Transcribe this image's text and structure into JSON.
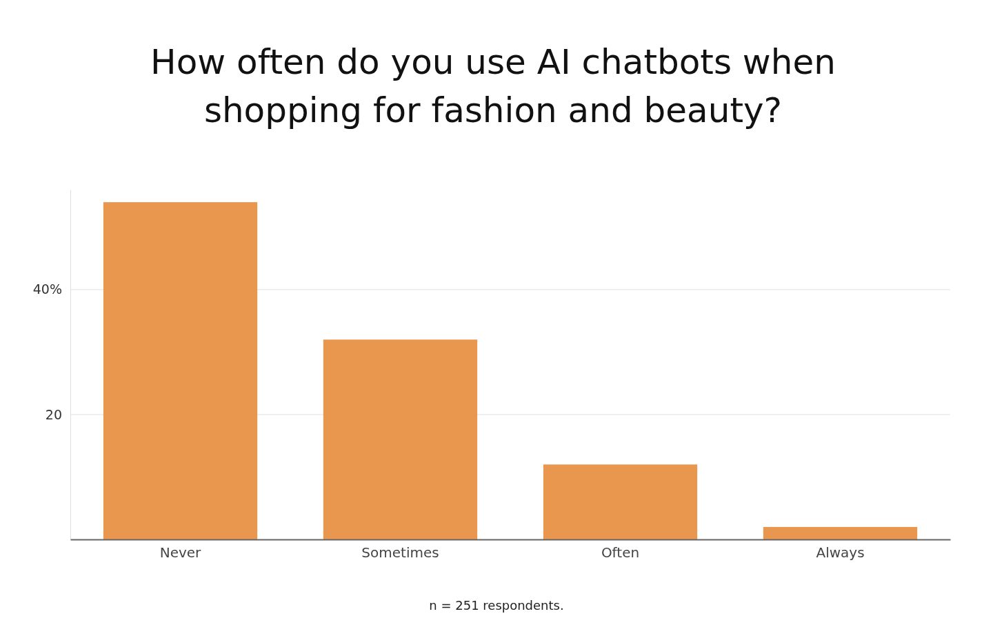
{
  "chart_data": {
    "type": "bar",
    "title": "How often do you use AI chatbots when shopping for fashion and beauty?",
    "categories": [
      "Never",
      "Sometimes",
      "Often",
      "Always"
    ],
    "values": [
      54,
      32,
      12,
      2
    ],
    "color": "#e9974f",
    "ylim": [
      0,
      56
    ],
    "yticks": [
      {
        "value": 20,
        "label": "20"
      },
      {
        "value": 40,
        "label": "40%"
      }
    ],
    "grid": "y",
    "annotations": [
      "n = 251 respondents."
    ]
  }
}
